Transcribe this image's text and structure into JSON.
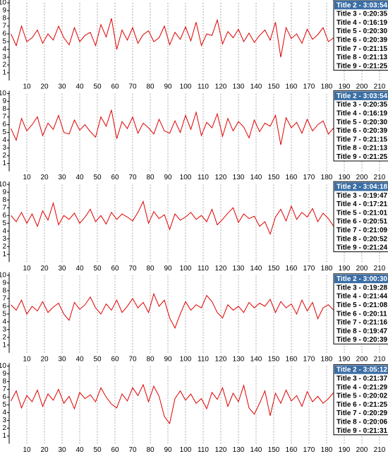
{
  "chart_data": [
    {
      "type": "line",
      "color": "#e00000",
      "x": [
        1,
        4,
        7,
        10,
        13,
        16,
        19,
        22,
        25,
        28,
        31,
        34,
        37,
        40,
        43,
        46,
        49,
        52,
        55,
        58,
        61,
        64,
        67,
        70,
        73,
        76,
        79,
        82,
        85,
        88,
        91,
        94,
        97,
        100,
        103,
        106,
        109,
        112,
        115,
        118,
        121,
        124,
        127,
        130,
        133,
        136,
        139,
        142,
        145,
        148,
        151,
        154,
        157,
        160,
        163,
        166,
        169,
        172,
        175,
        178,
        181,
        184
      ],
      "values": [
        6,
        4.5,
        7,
        5,
        5.5,
        6.5,
        4.8,
        6,
        5.2,
        7,
        5.5,
        4.6,
        6.8,
        5,
        5.8,
        6.2,
        4.5,
        7.2,
        5.6,
        8,
        4,
        6.5,
        5.2,
        6.8,
        4.8,
        5.9,
        6.4,
        5,
        5.5,
        7,
        4.6,
        6.2,
        5.3,
        6.9,
        5.1,
        7.5,
        4.5,
        6,
        5.8,
        7.8,
        4.7,
        6.3,
        5.5,
        6.6,
        5,
        6.1,
        4.9,
        5.8,
        6.5,
        5.2,
        7.5,
        3,
        6.8,
        5.4,
        6,
        4.8,
        6.6,
        5.3,
        5.9,
        6.8,
        5,
        5.5
      ],
      "xlim": [
        0,
        215
      ],
      "xticks": [
        10,
        20,
        30,
        40,
        50,
        60,
        70,
        80,
        90,
        100,
        110,
        120,
        130,
        140,
        150,
        160,
        170,
        180,
        190,
        200,
        210
      ],
      "ylim": [
        0,
        10
      ],
      "yticks": [
        1,
        2,
        3,
        4,
        5,
        6,
        7,
        8,
        9,
        10
      ],
      "grid": true,
      "list_items": [
        "Title 2 - 3:03:54",
        "Title 3 - 0:20:35",
        "Title 4 - 0:16:19",
        "Title 5 - 0:20:30",
        "Title 6 - 0:20:39",
        "Title 7 - 0:21:15",
        "Title 8 - 0:21:13",
        "Title 9 - 0:21:25"
      ]
    },
    {
      "type": "line",
      "color": "#e00000",
      "x": [
        1,
        4,
        7,
        10,
        13,
        16,
        19,
        22,
        25,
        28,
        31,
        34,
        37,
        40,
        43,
        46,
        49,
        52,
        55,
        58,
        61,
        64,
        67,
        70,
        73,
        76,
        79,
        82,
        85,
        88,
        91,
        94,
        97,
        100,
        103,
        106,
        109,
        112,
        115,
        118,
        121,
        124,
        127,
        130,
        133,
        136,
        139,
        142,
        145,
        148,
        151,
        154,
        157,
        160,
        163,
        166,
        169,
        172,
        175,
        178,
        181,
        184
      ],
      "values": [
        5.5,
        4,
        6.8,
        5.2,
        6,
        7,
        4.6,
        6.2,
        5.4,
        7.2,
        5,
        4.8,
        6.6,
        5.3,
        6,
        5.1,
        4.4,
        7,
        5.8,
        7.9,
        4.2,
        6.4,
        5.5,
        7,
        4.9,
        6.2,
        5.6,
        4.8,
        6.7,
        5.2,
        4.9,
        6.5,
        5,
        7.2,
        5.4,
        7.6,
        4.6,
        6.3,
        5.6,
        7.4,
        4.5,
        6.8,
        5.2,
        6.4,
        5.7,
        4.3,
        6.6,
        5.1,
        6.2,
        5.8,
        7.2,
        3.4,
        6.9,
        5.6,
        6.3,
        4.9,
        6.7,
        5.2,
        6,
        6.5,
        4.8,
        5.6
      ],
      "xlim": [
        0,
        215
      ],
      "xticks": [
        10,
        20,
        30,
        40,
        50,
        60,
        70,
        80,
        90,
        100,
        110,
        120,
        130,
        140,
        150,
        160,
        170,
        180,
        190,
        200,
        210
      ],
      "ylim": [
        0,
        10
      ],
      "yticks": [
        1,
        2,
        3,
        4,
        5,
        6,
        7,
        8,
        9,
        10
      ],
      "grid": true,
      "list_items": [
        "Title 2 - 3:03:54",
        "Title 3 - 0:20:35",
        "Title 4 - 0:16:19",
        "Title 5 - 0:20:30",
        "Title 6 - 0:20:39",
        "Title 7 - 0:21:15",
        "Title 8 - 0:21:13",
        "Title 9 - 0:21:25"
      ]
    },
    {
      "type": "line",
      "color": "#e00000",
      "x": [
        1,
        4,
        7,
        10,
        13,
        16,
        19,
        22,
        25,
        28,
        31,
        34,
        37,
        40,
        43,
        46,
        49,
        52,
        55,
        58,
        61,
        64,
        67,
        70,
        73,
        76,
        79,
        82,
        85,
        88,
        91,
        94,
        97,
        100,
        103,
        106,
        109,
        112,
        115,
        118,
        121,
        124,
        127,
        130,
        133,
        136,
        139,
        142,
        145,
        148,
        151,
        154,
        157,
        160,
        163,
        166,
        169,
        172,
        175,
        178,
        181,
        184
      ],
      "values": [
        6,
        5.2,
        6.4,
        5,
        6.2,
        4.6,
        6.6,
        5.4,
        7.6,
        4.8,
        6,
        5.5,
        6.3,
        5,
        5.8,
        6.8,
        5.2,
        6,
        4.9,
        6.4,
        5.5,
        6.2,
        5.8,
        5.3,
        6.4,
        7.8,
        5,
        6.5,
        5.6,
        6.1,
        4.2,
        6.2,
        5.4,
        5.8,
        6.4,
        5.5,
        6,
        5.2,
        6.8,
        4.8,
        5.5,
        6.3,
        7,
        5.1,
        6.2,
        5.6,
        5.9,
        4.6,
        5.2,
        3.6,
        5.8,
        6.8,
        5.3,
        7.2,
        5.5,
        6.4,
        5.8,
        6.9,
        5.2,
        6.3,
        5.6,
        4.6
      ],
      "xlim": [
        0,
        215
      ],
      "xticks": [
        10,
        20,
        30,
        40,
        50,
        60,
        70,
        80,
        90,
        100,
        110,
        120,
        130,
        140,
        150,
        160,
        170,
        180,
        190,
        200,
        210
      ],
      "ylim": [
        0,
        10
      ],
      "yticks": [
        1,
        2,
        3,
        4,
        5,
        6,
        7,
        8,
        9,
        10
      ],
      "grid": true,
      "list_items": [
        "Title 2 - 3:04:18",
        "Title 3 - 0:19:47",
        "Title 4 - 0:17:21",
        "Title 5 - 0:21:01",
        "Title 6 - 0:20:51",
        "Title 7 - 0:21:09",
        "Title 8 - 0:20:52",
        "Title 9 - 0:21:24"
      ]
    },
    {
      "type": "line",
      "color": "#e00000",
      "x": [
        1,
        4,
        7,
        10,
        13,
        16,
        19,
        22,
        25,
        28,
        31,
        34,
        37,
        40,
        43,
        46,
        49,
        52,
        55,
        58,
        61,
        64,
        67,
        70,
        73,
        76,
        79,
        82,
        85,
        88,
        91,
        94,
        97,
        100,
        103,
        106,
        109,
        112,
        115,
        118,
        121,
        124,
        127,
        130,
        133,
        136,
        139,
        142,
        145,
        148,
        151,
        154,
        157,
        160,
        163,
        166,
        169,
        172,
        175,
        178,
        181,
        184
      ],
      "values": [
        6.2,
        5.5,
        6.8,
        5,
        6,
        5.4,
        6.6,
        5.2,
        5.9,
        6.4,
        5,
        4.2,
        6.5,
        5.6,
        6.2,
        7.2,
        5.8,
        5,
        6.3,
        5.5,
        6.8,
        5.2,
        6,
        7,
        5.8,
        6.5,
        5.2,
        7.6,
        6,
        6.8,
        4.5,
        3.2,
        5,
        6.6,
        5.5,
        6.2,
        5.8,
        7.4,
        6.6,
        5.2,
        4.5,
        6.2,
        5.5,
        6,
        5.2,
        6.5,
        5.8,
        6.4,
        6,
        6.9,
        5.2,
        6.6,
        5.8,
        6.3,
        5,
        6.8,
        5.4,
        6.5,
        4.4,
        5.8,
        6.2,
        5.5
      ],
      "xlim": [
        0,
        215
      ],
      "xticks": [
        10,
        20,
        30,
        40,
        50,
        60,
        70,
        80,
        90,
        100,
        110,
        120,
        130,
        140,
        150,
        160,
        170,
        180,
        190,
        200,
        210
      ],
      "ylim": [
        0,
        10
      ],
      "yticks": [
        1,
        2,
        3,
        4,
        5,
        6,
        7,
        8,
        9,
        10
      ],
      "grid": true,
      "list_items": [
        "Title 2 - 3:00:30",
        "Title 3 - 0:19:28",
        "Title 4 - 0:21:44",
        "Title 5 - 0:21:08",
        "Title 6 - 0:20:11",
        "Title 7 - 0:21:16",
        "Title 8 - 0:19:47",
        "Title 9 - 0:20:39"
      ]
    },
    {
      "type": "line",
      "color": "#e00000",
      "x": [
        1,
        4,
        7,
        10,
        13,
        16,
        19,
        22,
        25,
        28,
        31,
        34,
        37,
        40,
        43,
        46,
        49,
        52,
        55,
        58,
        61,
        64,
        67,
        70,
        73,
        76,
        79,
        82,
        85,
        88,
        91,
        94,
        97,
        100,
        103,
        106,
        109,
        112,
        115,
        118,
        121,
        124,
        127,
        130,
        133,
        136,
        139,
        142,
        145,
        148,
        151,
        154,
        157,
        160,
        163,
        166,
        169,
        172,
        175,
        178,
        181,
        184
      ],
      "values": [
        5.5,
        6.8,
        4.6,
        6.2,
        5.4,
        6.9,
        4.8,
        6.4,
        5.6,
        7,
        5.2,
        6.1,
        4.5,
        6.6,
        5.8,
        6.3,
        5.4,
        7.2,
        6,
        5.1,
        4.6,
        6.4,
        5.5,
        7.2,
        6.2,
        7.6,
        5.4,
        7.4,
        6.1,
        3.5,
        2.6,
        5.8,
        6.8,
        5.6,
        6.4,
        5.2,
        5.8,
        4.5,
        6.6,
        5.7,
        7.2,
        4.8,
        6.5,
        5.4,
        7.5,
        4.6,
        3.8,
        5.2,
        6.8,
        3.6,
        6.5,
        5.2,
        6.9,
        5.5,
        6.2,
        4.8,
        6.7,
        5.4,
        6.1,
        5.2,
        5.8,
        6.6
      ],
      "xlim": [
        0,
        215
      ],
      "xticks": [
        10,
        20,
        30,
        40,
        50,
        60,
        70,
        80,
        90,
        100,
        110,
        120,
        130,
        140,
        150,
        160,
        170,
        180,
        190,
        200,
        210
      ],
      "ylim": [
        0,
        10
      ],
      "yticks": [
        1,
        2,
        3,
        4,
        5,
        6,
        7,
        8,
        9,
        10
      ],
      "grid": true,
      "list_items": [
        "Title 2 - 3:05:12",
        "Title 3 - 0:21:37",
        "Title 4 - 0:21:29",
        "Title 5 - 0:20:02",
        "Title 6 - 0:21:25",
        "Title 7 - 0:20:29",
        "Title 8 - 0:20:06",
        "Title 9 - 0:21:31"
      ]
    }
  ]
}
